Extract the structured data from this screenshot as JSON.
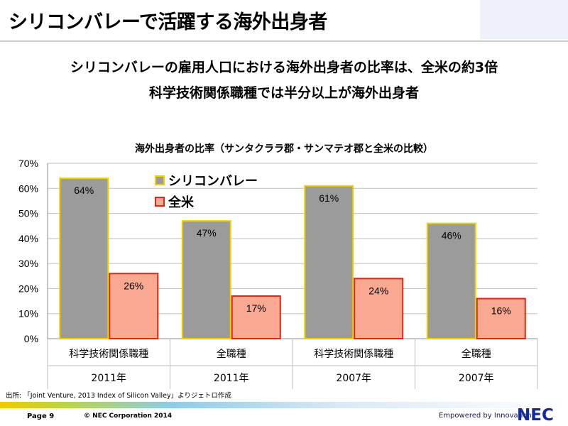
{
  "header": {
    "title": "シリコンバレーで活躍する海外出身者",
    "subtitle_line1": "シリコンバレーの雇用人口における海外出身者の比率は、全米の約3倍",
    "subtitle_line2": "科学技術関係職種では半分以上が海外出身者"
  },
  "chart_data": {
    "type": "bar",
    "title": "海外出身者の比率（サンタクララ郡・サンマテオ郡と全米の比較）",
    "categories": [
      "科学技術関係職種",
      "全職種",
      "科学技術関係職種",
      "全職種"
    ],
    "category_years": [
      "2011年",
      "2011年",
      "2007年",
      "2007年"
    ],
    "series": [
      {
        "name": "シリコンバレー",
        "values": [
          64,
          47,
          61,
          46
        ],
        "labels": [
          "64%",
          "47%",
          "61%",
          "46%"
        ],
        "color": "#9b9b9b",
        "border": "#f0d000"
      },
      {
        "name": "全米",
        "values": [
          26,
          17,
          24,
          16
        ],
        "labels": [
          "26%",
          "17%",
          "24%",
          "16%"
        ],
        "color": "#f9a891",
        "border": "#d42a14"
      }
    ],
    "ylim": [
      0,
      70
    ],
    "yticks": [
      "0%",
      "10%",
      "20%",
      "30%",
      "40%",
      "50%",
      "60%",
      "70%"
    ],
    "grid": true,
    "legend_position": "top-center"
  },
  "source": "出所: 「Joint Venture, 2013 Index of Silicon Valley」よりジェトロ作成",
  "footer": {
    "page": "Page 9",
    "copyright": "© NEC Corporation 2014",
    "tagline": "Empowered by Innovation",
    "logo": "NEC"
  }
}
